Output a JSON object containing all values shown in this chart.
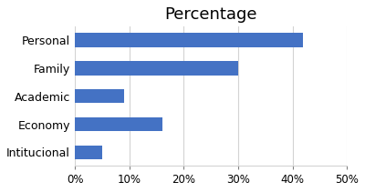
{
  "title": "Percentage",
  "categories": [
    "Personal",
    "Family",
    "Academic",
    "Economy",
    "Intitucional"
  ],
  "values": [
    42,
    30,
    9,
    16,
    5
  ],
  "bar_color": "#4472c4",
  "xlim": [
    0,
    50
  ],
  "xtick_values": [
    0,
    10,
    20,
    30,
    40,
    50
  ],
  "xtick_labels": [
    "0%",
    "10%",
    "20%",
    "30%",
    "40%",
    "50%"
  ],
  "title_fontsize": 13,
  "label_fontsize": 9,
  "tick_fontsize": 8.5,
  "background_color": "#ffffff",
  "bar_height": 0.5
}
